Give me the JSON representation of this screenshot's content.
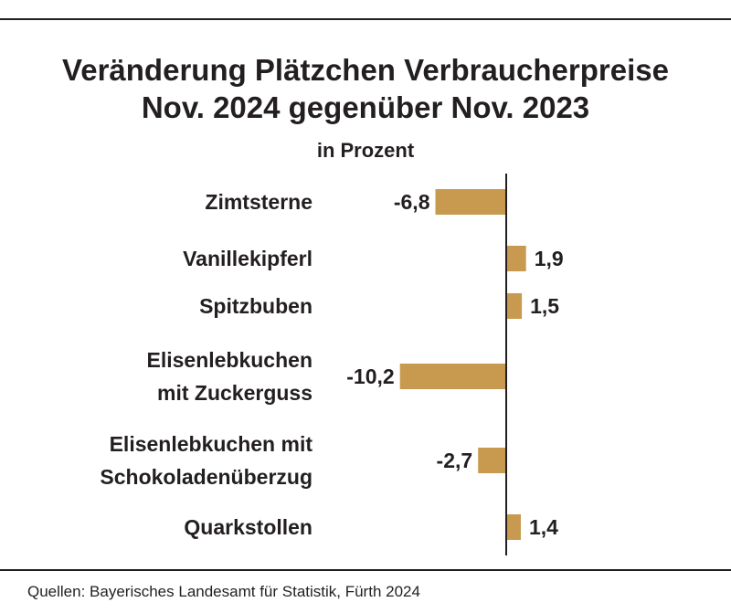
{
  "title_line1": "Veränderung Plätzchen Verbraucherpreise",
  "title_line2": "Nov. 2024 gegenüber Nov. 2023",
  "subtitle": "in Prozent",
  "source": "Quellen: Bayerisches Landesamt für Statistik, Fürth 2024",
  "colors": {
    "bar": "#c89a4f",
    "axis": "#231f20",
    "text": "#231f20"
  },
  "chart_data": {
    "type": "bar",
    "orientation": "horizontal",
    "title": "Veränderung Plätzchen Verbraucherpreise Nov. 2024 gegenüber Nov. 2023",
    "subtitle": "in Prozent",
    "categories": [
      [
        "Zimtsterne"
      ],
      [
        "Vanillekipferl"
      ],
      [
        "Spitzbuben"
      ],
      [
        "Elisenlebkuchen",
        "mit Zuckerguss"
      ],
      [
        "Elisenlebkuchen mit",
        "Schokoladenüberzug"
      ],
      [
        "Quarkstollen"
      ]
    ],
    "values": [
      -6.8,
      1.9,
      1.5,
      -10.2,
      -2.7,
      1.4
    ],
    "value_labels": [
      "-6,8",
      "1,9",
      "1,5",
      "-10,2",
      "-2,7",
      "1,4"
    ],
    "xlim": [
      -10.2,
      1.9
    ],
    "grid": false,
    "legend": "none"
  }
}
